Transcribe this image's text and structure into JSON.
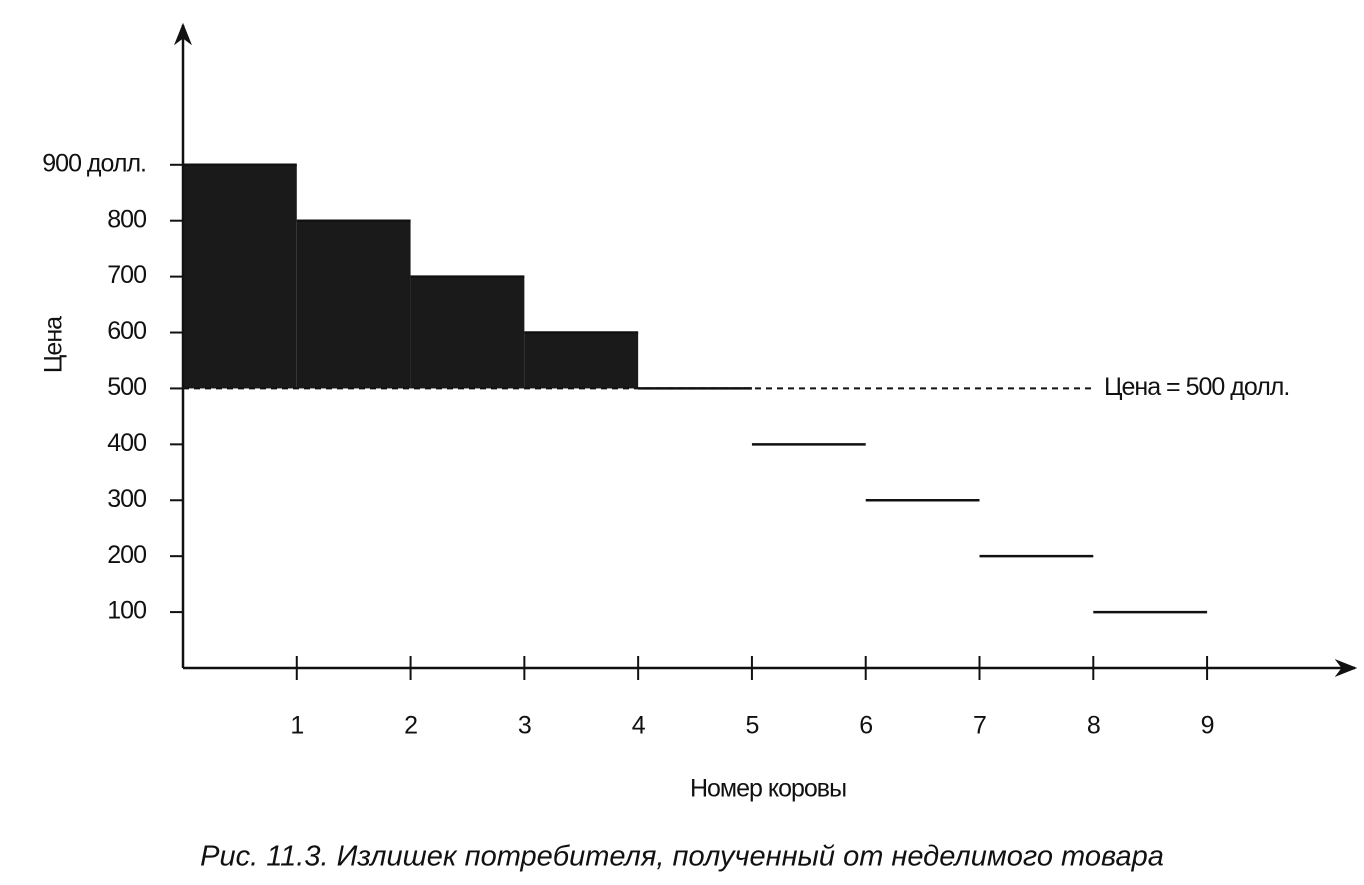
{
  "chart_data": {
    "type": "step",
    "caption": "Рис. 11.3. Излишек потребителя, полученный от неделимого товара",
    "xlabel": "Номер коровы",
    "ylabel": "Цена",
    "x": [
      1,
      2,
      3,
      4,
      5,
      6,
      7,
      8,
      9
    ],
    "values": [
      900,
      800,
      700,
      600,
      500,
      400,
      300,
      200,
      100
    ],
    "price": 500,
    "price_label": "Цена = 500 долл.",
    "color": "#111111",
    "surplus_color": "#1a1a1a",
    "xlim": [
      0,
      10.3
    ],
    "ylim": [
      0,
      1150
    ],
    "xticks": [
      1,
      2,
      3,
      4,
      5,
      6,
      7,
      8,
      9
    ],
    "yticks": [
      100,
      200,
      300,
      400,
      500,
      600,
      700,
      800,
      {
        "value": 900,
        "label": "900 долл."
      }
    ]
  }
}
